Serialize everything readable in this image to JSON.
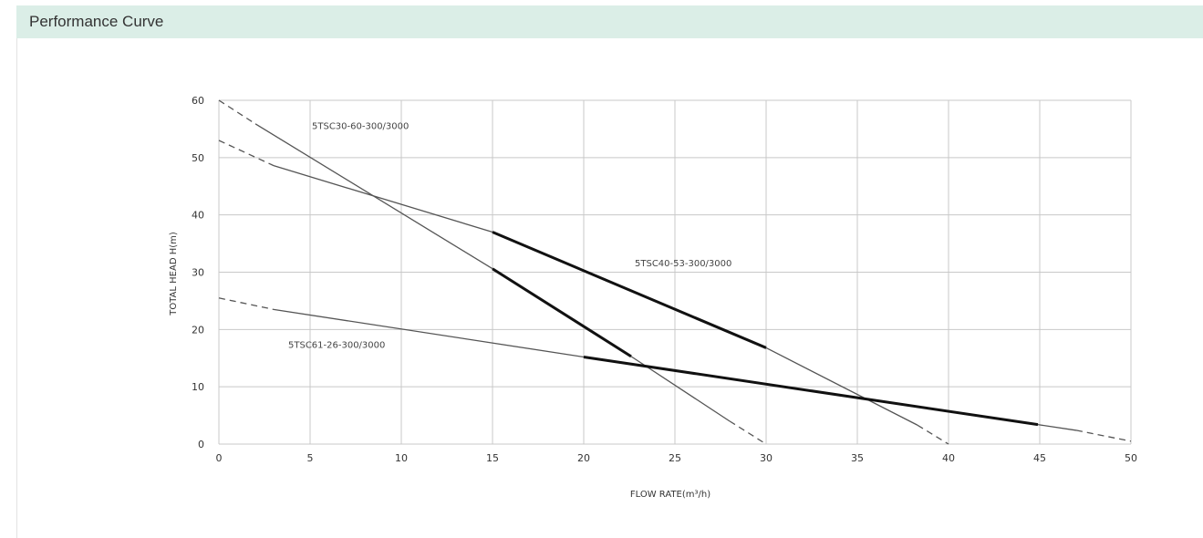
{
  "header": {
    "title": "Performance Curve"
  },
  "colors": {
    "header_bg": "#dbeee7",
    "grid": "#c8c8c8",
    "curve": "#555555",
    "operating_range": "#111111"
  },
  "chart_data": {
    "type": "line",
    "title": "",
    "xlabel": "FLOW  RATE(m³/h)",
    "ylabel": "TOTAL  HEAD  H(m)",
    "xlim": [
      0,
      50
    ],
    "ylim": [
      0,
      60
    ],
    "xticks": [
      0,
      5,
      10,
      15,
      20,
      25,
      30,
      35,
      40,
      45,
      50
    ],
    "yticks": [
      0,
      10,
      20,
      30,
      40,
      50,
      60
    ],
    "grid": true,
    "series": [
      {
        "name": "5TSC30-60-300/3000",
        "dashed": [
          [
            0,
            60
          ],
          [
            2,
            55.9
          ]
        ],
        "solid": [
          [
            2,
            55.9
          ],
          [
            15,
            30.6
          ]
        ],
        "operating": [
          [
            15,
            30.6
          ],
          [
            22.6,
            15.3
          ]
        ],
        "solid_end": [
          [
            22.6,
            15.3
          ],
          [
            28,
            4
          ]
        ],
        "dashed_end": [
          [
            28,
            4
          ],
          [
            30,
            0
          ]
        ],
        "label_pos": [
          5.1,
          55
        ]
      },
      {
        "name": "5TSC40-53-300/3000",
        "dashed": [
          [
            0,
            53
          ],
          [
            3,
            48.6
          ]
        ],
        "solid": [
          [
            3,
            48.6
          ],
          [
            15,
            37
          ]
        ],
        "operating": [
          [
            15,
            37
          ],
          [
            30,
            16.8
          ]
        ],
        "solid_end": [
          [
            30,
            16.8
          ],
          [
            38.3,
            3.3
          ]
        ],
        "dashed_end": [
          [
            38.3,
            3.3
          ],
          [
            40,
            0
          ]
        ],
        "label_pos": [
          22.8,
          31
        ]
      },
      {
        "name": "5TSC61-26-300/3000",
        "dashed": [
          [
            0,
            25.5
          ],
          [
            3,
            23.5
          ]
        ],
        "solid": [
          [
            3,
            23.5
          ],
          [
            20,
            15.2
          ]
        ],
        "operating": [
          [
            20,
            15.2
          ],
          [
            44.9,
            3.4
          ]
        ],
        "solid_end": [
          [
            44.9,
            3.4
          ],
          [
            47,
            2.4
          ]
        ],
        "dashed_end": [
          [
            47,
            2.4
          ],
          [
            50,
            0.5
          ]
        ],
        "label_pos": [
          3.8,
          16.8
        ]
      }
    ]
  }
}
